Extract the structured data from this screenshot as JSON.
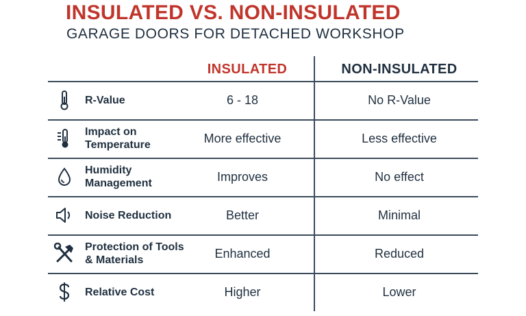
{
  "title": "INSULATED VS. NON-INSULATED",
  "subtitle": "GARAGE DOORS FOR DETACHED WORKSHOP",
  "columns": {
    "insulated": "INSULATED",
    "non_insulated": "NON-INSULATED"
  },
  "rows": [
    {
      "icon": "thermometer-icon",
      "label": "R-Value",
      "insulated": "6 - 18",
      "non_insulated": "No R-Value"
    },
    {
      "icon": "thermometer-gauge-icon",
      "label": "Impact on Temperature",
      "insulated": "More effective",
      "non_insulated": "Less effective"
    },
    {
      "icon": "water-drop-icon",
      "label": "Humidity Management",
      "insulated": "Improves",
      "non_insulated": "No effect"
    },
    {
      "icon": "speaker-icon",
      "label": "Noise Reduction",
      "insulated": "Better",
      "non_insulated": "Minimal"
    },
    {
      "icon": "hammer-wrench-icon",
      "label": "Protection of Tools & Materials",
      "insulated": "Enhanced",
      "non_insulated": "Reduced"
    },
    {
      "icon": "dollar-icon",
      "label": "Relative Cost",
      "insulated": "Higher",
      "non_insulated": "Lower"
    }
  ],
  "colors": {
    "accent": "#c0352b",
    "text": "#1f2f3f",
    "rule": "#3a4a5a"
  }
}
